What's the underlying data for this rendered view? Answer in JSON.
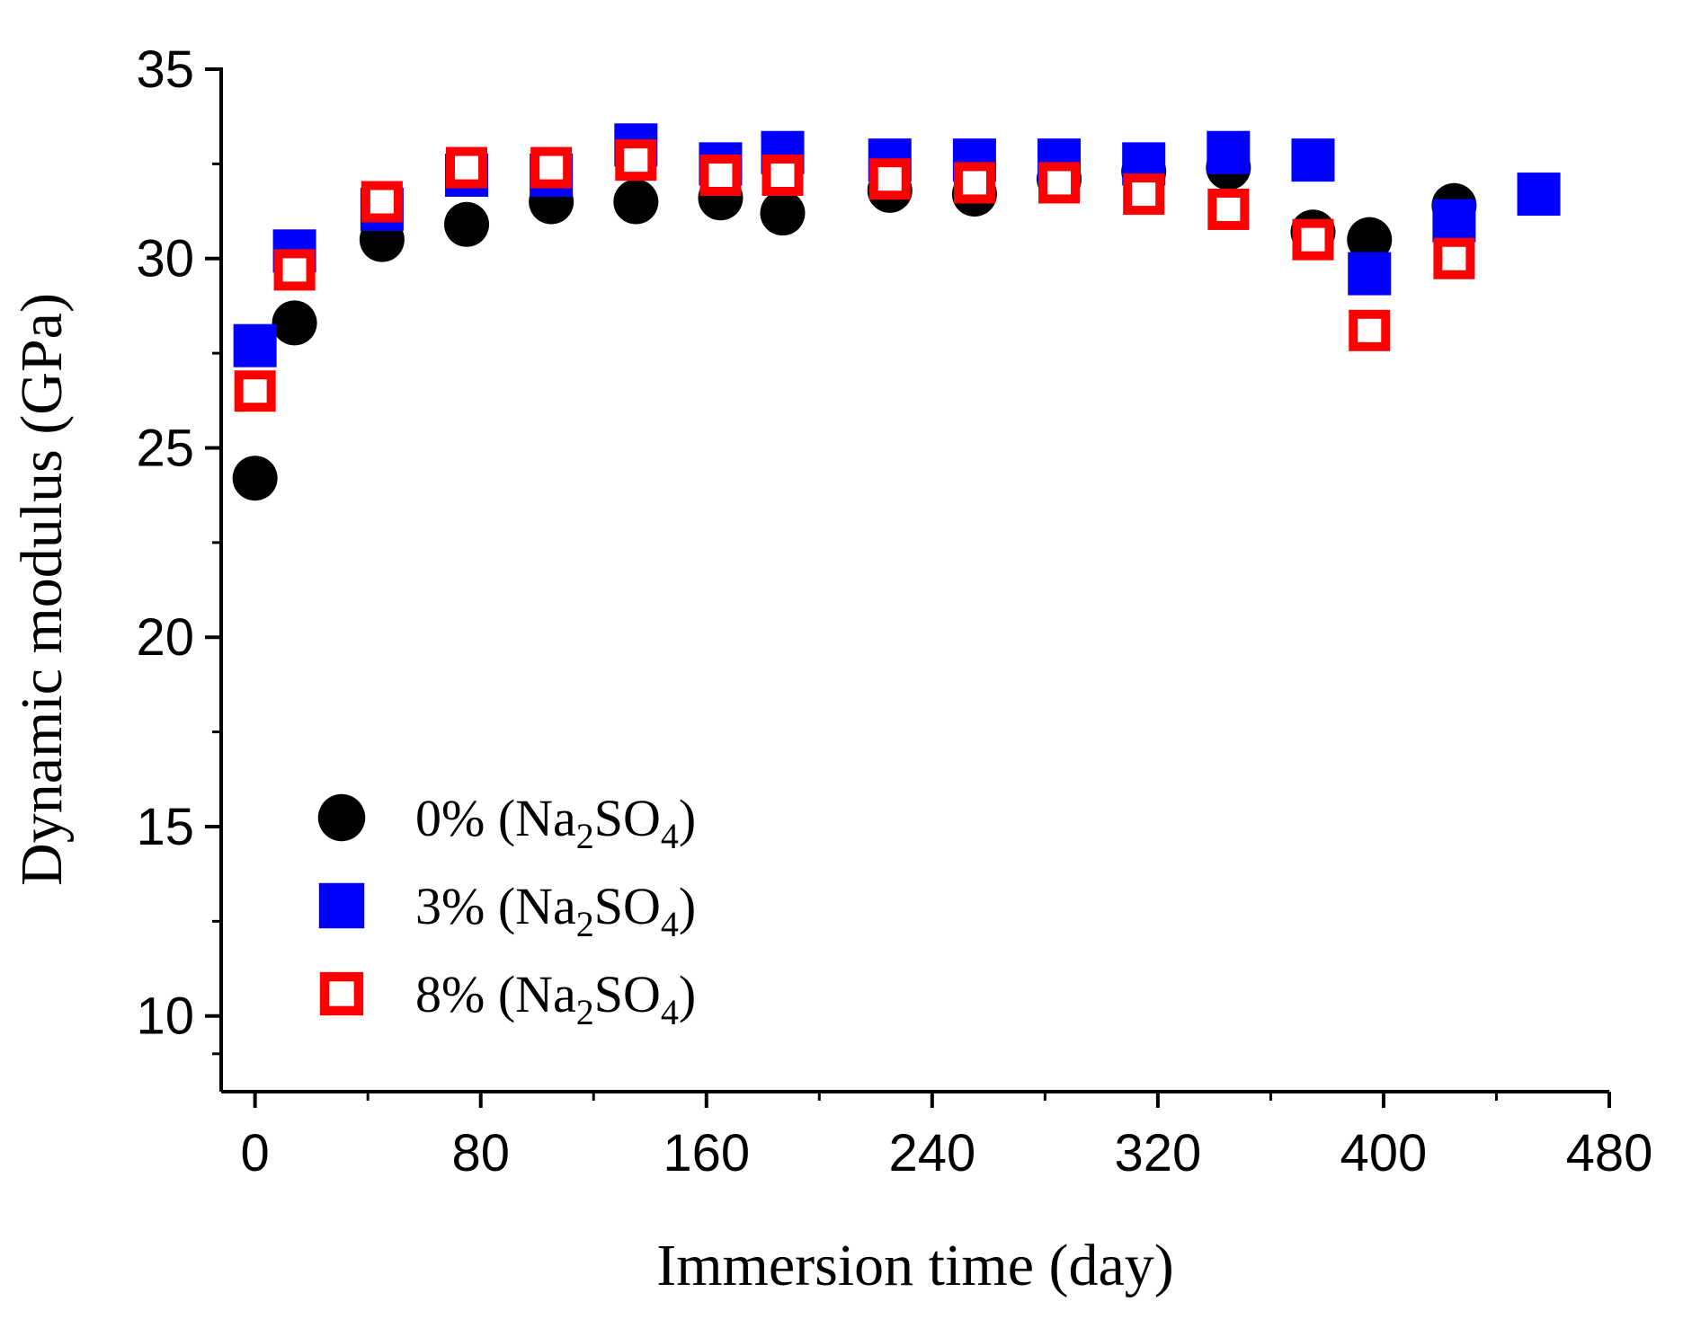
{
  "chart_data": {
    "type": "scatter",
    "title": "",
    "xlabel": "Immersion time (day)",
    "ylabel": "Dynamic modulus (GPa)",
    "xlim": [
      -12,
      480
    ],
    "ylim": [
      8,
      35
    ],
    "x_ticks": [
      0,
      80,
      160,
      240,
      320,
      400,
      480
    ],
    "y_ticks": [
      10,
      15,
      20,
      25,
      30,
      35
    ],
    "grid": false,
    "legend_position": "bottom-left",
    "series": [
      {
        "name": "0% (Na2SO4)",
        "legend": {
          "prefix": "0% (Na",
          "sub1": "2",
          "mid": "SO",
          "sub2": "4",
          "suffix": ")"
        },
        "marker": "circle-filled",
        "color": "#000000",
        "x": [
          0,
          14,
          45,
          75,
          105,
          135,
          165,
          187,
          225,
          255,
          285,
          315,
          345,
          375,
          395,
          425
        ],
        "y": [
          24.2,
          28.3,
          30.5,
          30.9,
          31.5,
          31.5,
          31.6,
          31.2,
          31.8,
          31.7,
          32.1,
          32.3,
          32.4,
          30.7,
          30.5,
          31.4
        ]
      },
      {
        "name": "3% (Na2SO4)",
        "legend": {
          "prefix": "3% (Na",
          "sub1": "2",
          "mid": "SO",
          "sub2": "4",
          "suffix": ")"
        },
        "marker": "square-filled",
        "color": "#0000ff",
        "x": [
          0,
          14,
          45,
          75,
          105,
          135,
          165,
          187,
          225,
          255,
          285,
          315,
          345,
          375,
          395,
          425,
          455
        ],
        "y": [
          27.7,
          30.2,
          31.3,
          32.2,
          32.2,
          33.0,
          32.5,
          32.8,
          32.6,
          32.6,
          32.6,
          32.5,
          32.8,
          32.6,
          29.6,
          31.0,
          31.7
        ]
      },
      {
        "name": "8% (Na2SO4)",
        "legend": {
          "prefix": "8% (Na",
          "sub1": "2",
          "mid": "SO",
          "sub2": "4",
          "suffix": ")"
        },
        "marker": "square-open",
        "color": "#ff0000",
        "x": [
          0,
          14,
          45,
          75,
          105,
          135,
          165,
          187,
          225,
          255,
          285,
          315,
          345,
          375,
          395,
          425
        ],
        "y": [
          26.5,
          29.7,
          31.5,
          32.4,
          32.4,
          32.6,
          32.2,
          32.2,
          32.1,
          32.0,
          32.0,
          31.7,
          31.3,
          30.5,
          28.1,
          30.0
        ]
      }
    ]
  }
}
